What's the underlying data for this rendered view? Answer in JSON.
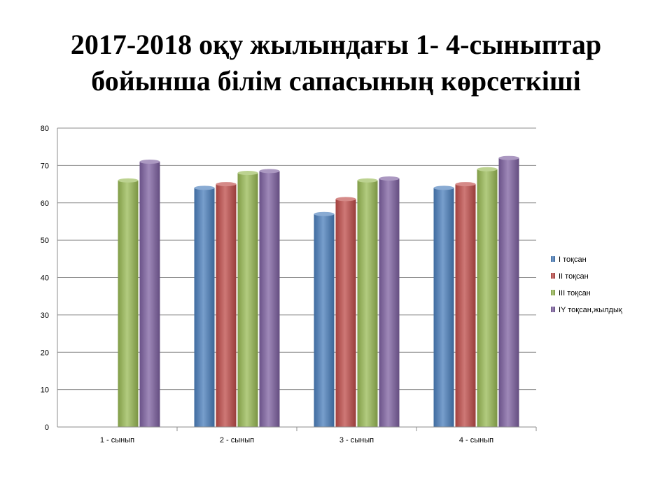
{
  "slide": {
    "title_line1": "2017-2018 оқу жылындағы 1- 4-сыныптар",
    "title_line2": "бойынша білім сапасының көрсеткіші"
  },
  "chart_data": {
    "type": "bar",
    "categories": [
      "1 - сынып",
      "2 - сынып",
      "3 - сынып",
      "4 - сынып"
    ],
    "series": [
      {
        "name": "I тоқсан",
        "values": [
          null,
          64,
          57,
          64
        ],
        "color": "#4a7ebb"
      },
      {
        "name": "II тоқсан",
        "values": [
          null,
          65,
          61,
          65
        ],
        "color": "#be4b48"
      },
      {
        "name": "III тоқсан",
        "values": [
          66,
          68,
          66,
          69
        ],
        "color": "#98b954"
      },
      {
        "name": "IY тоқсан,жылдық",
        "values": [
          71,
          68.5,
          66.5,
          72
        ],
        "color": "#7d60a0"
      }
    ],
    "ylim": [
      0,
      80
    ],
    "yticks": [
      0,
      10,
      20,
      30,
      40,
      50,
      60,
      70,
      80
    ],
    "grid": true,
    "legend_position": "right"
  }
}
